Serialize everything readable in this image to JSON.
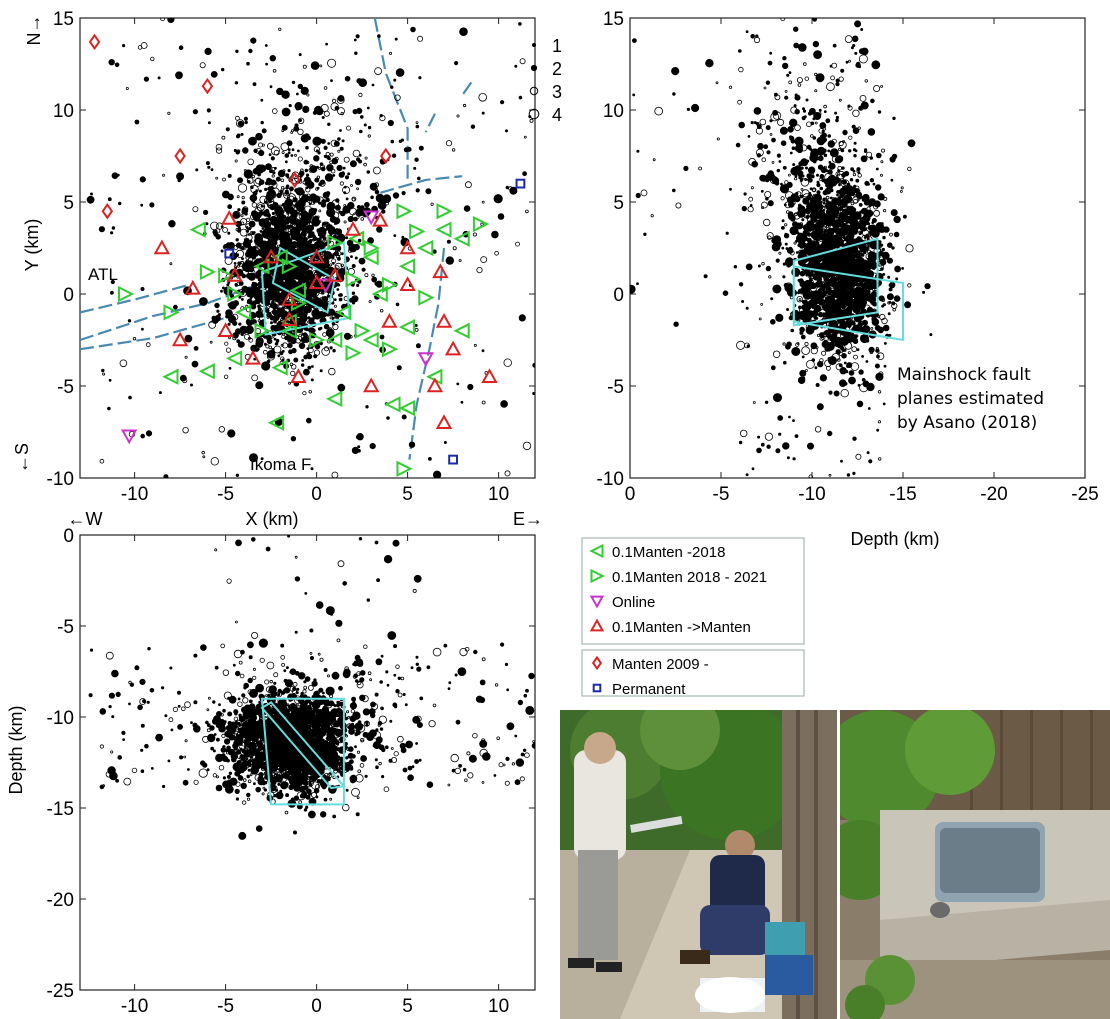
{
  "chart_data": [
    {
      "type": "scatter",
      "panel": "map-view",
      "x_range": [
        -13,
        12
      ],
      "y_range": [
        -10,
        15
      ],
      "xticks": [
        -10,
        -5,
        0,
        5,
        10
      ],
      "yticks": [
        -10,
        -5,
        0,
        5,
        10,
        15
      ],
      "xlabel": "X (km)",
      "ylabel": "Y (km)",
      "direction_labels": {
        "north": "N→",
        "south": "←S",
        "west": "←W",
        "east": "E→"
      },
      "annotations": [
        "ATL",
        "Ikoma F"
      ],
      "magnitude_legend": [
        "1",
        "2",
        "3",
        "4"
      ],
      "stations": {
        "manten_minus_2018": [
          [
            -6.5,
            3.5
          ],
          [
            -2,
            2
          ],
          [
            -1,
            0.2
          ],
          [
            3,
            2
          ],
          [
            5,
            1.5
          ],
          [
            7,
            3.5
          ],
          [
            -8,
            -4.5
          ],
          [
            -6,
            -4.2
          ],
          [
            -4.5,
            -3.5
          ],
          [
            -2,
            -4
          ],
          [
            1,
            -2.5
          ],
          [
            1.5,
            -1
          ],
          [
            3,
            -2.5
          ],
          [
            5,
            -1.8
          ],
          [
            8,
            -2
          ],
          [
            -1.5,
            -2
          ],
          [
            -2.2,
            -7
          ],
          [
            1,
            -5.7
          ],
          [
            4.2,
            -6
          ],
          [
            5,
            -6.2
          ],
          [
            6.5,
            -4.5
          ],
          [
            2.2,
            3
          ],
          [
            -3,
            1.5
          ],
          [
            -1.5,
            -1.5
          ],
          [
            3.5,
            0
          ],
          [
            6,
            2.5
          ],
          [
            8,
            3
          ],
          [
            -4,
            -1
          ]
        ],
        "manten_2018_2021": [
          [
            -10.5,
            0
          ],
          [
            -8,
            -1
          ],
          [
            -6,
            1.2
          ],
          [
            -3,
            -2
          ],
          [
            -1,
            -0.5
          ],
          [
            0,
            -2.5
          ],
          [
            2,
            0.8
          ],
          [
            4,
            0.5
          ],
          [
            4.8,
            4.5
          ],
          [
            7,
            4.5
          ],
          [
            9,
            3.8
          ],
          [
            6,
            -0.2
          ],
          [
            4,
            -3
          ],
          [
            2.5,
            -2
          ],
          [
            -4.5,
            0
          ],
          [
            -1.5,
            1.5
          ],
          [
            2,
            -3.2
          ],
          [
            4.8,
            -9.5
          ],
          [
            -5,
            1
          ],
          [
            3,
            2.5
          ],
          [
            5.5,
            3.4
          ],
          [
            1,
            2.8
          ]
        ],
        "online": [
          [
            -10.3,
            -7.7
          ],
          [
            3,
            4.2
          ],
          [
            0.5,
            0.5
          ],
          [
            6,
            -3.5
          ]
        ],
        "manten_to_manten": [
          [
            -8.5,
            2.5
          ],
          [
            -7.5,
            -2.5
          ],
          [
            -6.8,
            0.3
          ],
          [
            -4.5,
            1
          ],
          [
            -3.5,
            -3.5
          ],
          [
            -2.5,
            2
          ],
          [
            -1.5,
            -0.3
          ],
          [
            0,
            2
          ],
          [
            1,
            1
          ],
          [
            2,
            3.5
          ],
          [
            3.5,
            4
          ],
          [
            5,
            2.5
          ],
          [
            5,
            0.5
          ],
          [
            6.8,
            1.2
          ],
          [
            7,
            -1.5
          ],
          [
            7.5,
            -3
          ],
          [
            9.5,
            -4.5
          ],
          [
            7,
            -7
          ],
          [
            6.5,
            -5
          ],
          [
            4,
            -1.5
          ],
          [
            3,
            -5
          ],
          [
            -1,
            -4.5
          ],
          [
            -4.8,
            4.1
          ],
          [
            0,
            0.6
          ],
          [
            -1.5,
            -1.4
          ],
          [
            -5,
            -2
          ]
        ],
        "manten_2009": [
          [
            -12.2,
            13.7
          ],
          [
            -6,
            11.3
          ],
          [
            -7.5,
            7.5
          ],
          [
            -11.5,
            4.5
          ],
          [
            -1.2,
            6.2
          ],
          [
            3.8,
            7.5
          ]
        ],
        "permanent": [
          [
            -4.8,
            2.2
          ],
          [
            11.2,
            6
          ],
          [
            7.5,
            -9
          ]
        ]
      }
    },
    {
      "type": "scatter",
      "panel": "depth-vs-y",
      "x_range": [
        0,
        -25
      ],
      "y_range": [
        -10,
        15
      ],
      "xticks": [
        0,
        -5,
        -10,
        -15,
        -20,
        -25
      ],
      "yticks": [
        -10,
        -5,
        0,
        5,
        10,
        15
      ],
      "xlabel": "Depth (km)",
      "ylabel": "",
      "annotation": "Mainshock fault planes estimated by Asano (2018)"
    },
    {
      "type": "scatter",
      "panel": "x-vs-depth",
      "x_range": [
        -13,
        12
      ],
      "y_range": [
        -25,
        0
      ],
      "xticks": [
        -10,
        -5,
        0,
        5,
        10
      ],
      "yticks": [
        0,
        -5,
        -10,
        -15,
        -20,
        -25
      ],
      "xlabel": "",
      "ylabel": "Depth (km)"
    }
  ],
  "legend": {
    "group1": [
      {
        "label": "0.1Manten -2018",
        "symbol": "triangle-left",
        "color": "#33cc33"
      },
      {
        "label": "0.1Manten 2018 - 2021",
        "symbol": "triangle-right",
        "color": "#33cc33"
      },
      {
        "label": "Online",
        "symbol": "triangle-down",
        "color": "#cc33cc"
      },
      {
        "label": "0.1Manten ->Manten",
        "symbol": "triangle-up",
        "color": "#dd2222"
      }
    ],
    "group2": [
      {
        "label": "Manten 2009 -",
        "symbol": "diamond",
        "color": "#dd2222"
      },
      {
        "label": "Permanent",
        "symbol": "square",
        "color": "#1a2aaa"
      }
    ]
  },
  "colors": {
    "event": "#000000",
    "fault_plane": "#66dddd",
    "active_fault": "#4a8ab0"
  },
  "photos": [
    {
      "name": "installation-photo"
    },
    {
      "name": "covered-instrument-photo"
    }
  ]
}
